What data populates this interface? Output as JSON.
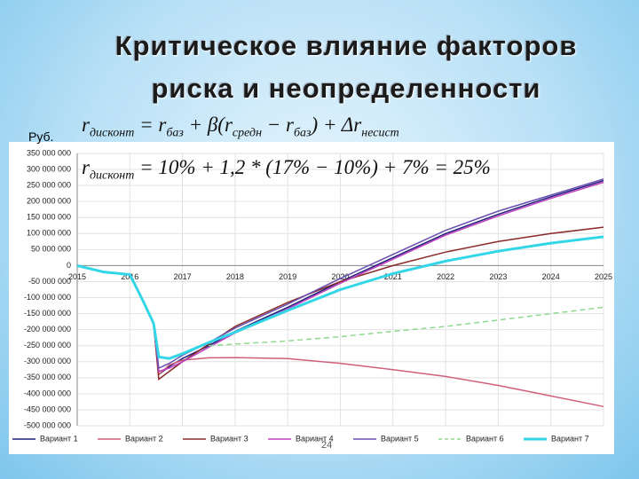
{
  "slide": {
    "title_lines": [
      "Критическое влияние факторов",
      "риска и неопределенности"
    ],
    "unit": "Руб.",
    "formulas": [
      [
        "r",
        "дисконт",
        " = r",
        "баз",
        " + β(r",
        "средн",
        " − r",
        "баз",
        ") + Δr",
        "несист"
      ],
      [
        "r",
        "дисконт",
        " = 10% + 1,2 * (17% − 10%) + 7% = 25%"
      ]
    ],
    "page_number": "24"
  },
  "chart_data": {
    "type": "line",
    "grid": true,
    "x": [
      2015,
      2015.5,
      2016,
      2016.25,
      2016.45,
      2016.55,
      2016.75,
      2017,
      2017.5,
      2018,
      2019,
      2020,
      2021,
      2022,
      2023,
      2024,
      2025
    ],
    "xlim": [
      2015,
      2025
    ],
    "xticks": [
      2015,
      2016,
      2017,
      2018,
      2019,
      2020,
      2021,
      2022,
      2023,
      2024,
      2025
    ],
    "ylim": [
      -500000000,
      350000000
    ],
    "yticks": [
      {
        "value": 350000000,
        "label": "350 000 000"
      },
      {
        "value": 300000000,
        "label": "300 000 000"
      },
      {
        "value": 250000000,
        "label": "250 000 000"
      },
      {
        "value": 200000000,
        "label": "200 000 000"
      },
      {
        "value": 150000000,
        "label": "150 000 000"
      },
      {
        "value": 100000000,
        "label": "100 000 000"
      },
      {
        "value": 50000000,
        "label": "50 000 000"
      },
      0,
      {
        "value": -50000000,
        "label": "-50 000 000"
      },
      {
        "value": -100000000,
        "label": "-100 000 000"
      },
      {
        "value": -150000000,
        "label": "-150 000 000"
      },
      {
        "value": -200000000,
        "label": "-200 000 000"
      },
      {
        "value": -250000000,
        "label": "-250 000 000"
      },
      {
        "value": -300000000,
        "label": "-300 000 000"
      },
      {
        "value": -350000000,
        "label": "-350 000 000"
      },
      {
        "value": -400000000,
        "label": "-400 000 000"
      },
      {
        "value": -450000000,
        "label": "-450 000 000"
      },
      {
        "value": -500000000,
        "label": "-500 000 000"
      }
    ],
    "series": [
      {
        "name": "Вариант 1",
        "color": "#1f1f7a",
        "values": [
          0,
          -20000000,
          -28000000,
          -110000000,
          -180000000,
          -340000000,
          -315000000,
          -290000000,
          -250000000,
          -205000000,
          -130000000,
          -50000000,
          25000000,
          100000000,
          160000000,
          215000000,
          265000000
        ]
      },
      {
        "name": "Вариант 2",
        "color": "#d0607a",
        "values": [
          0,
          -20000000,
          -28000000,
          -110000000,
          -180000000,
          -340000000,
          -310000000,
          -295000000,
          -288000000,
          -287000000,
          -290000000,
          -305000000,
          -325000000,
          -346000000,
          -374000000,
          -407000000,
          -440000000
        ]
      },
      {
        "name": "Вариант 3",
        "color": "#8b2a2a",
        "values": [
          0,
          -20000000,
          -28000000,
          -110000000,
          -180000000,
          -355000000,
          -330000000,
          -300000000,
          -245000000,
          -190000000,
          -115000000,
          -50000000,
          0,
          42000000,
          75000000,
          100000000,
          120000000
        ]
      },
      {
        "name": "Вариант 4",
        "color": "#c040c0",
        "values": [
          0,
          -20000000,
          -28000000,
          -110000000,
          -180000000,
          -330000000,
          -320000000,
          -300000000,
          -255000000,
          -210000000,
          -135000000,
          -55000000,
          20000000,
          95000000,
          155000000,
          210000000,
          260000000
        ]
      },
      {
        "name": "Вариант 5",
        "color": "#6a4fb0",
        "values": [
          0,
          -20000000,
          -28000000,
          -110000000,
          -180000000,
          -320000000,
          -305000000,
          -280000000,
          -240000000,
          -195000000,
          -120000000,
          -40000000,
          35000000,
          110000000,
          170000000,
          220000000,
          270000000
        ]
      },
      {
        "name": "Вариант 6",
        "color": "#8fd88f",
        "dashed": true,
        "values": [
          null,
          null,
          null,
          null,
          null,
          null,
          null,
          null,
          -250000000,
          -245000000,
          -235000000,
          -222000000,
          -205000000,
          -190000000,
          -170000000,
          -150000000,
          -130000000
        ]
      },
      {
        "name": "Вариант 7",
        "color": "#33d6e6",
        "width": 3,
        "values": [
          0,
          -20000000,
          -28000000,
          -110000000,
          -180000000,
          -285000000,
          -290000000,
          -275000000,
          -240000000,
          -208000000,
          -140000000,
          -75000000,
          -25000000,
          14000000,
          45000000,
          70000000,
          90000000
        ]
      }
    ]
  }
}
